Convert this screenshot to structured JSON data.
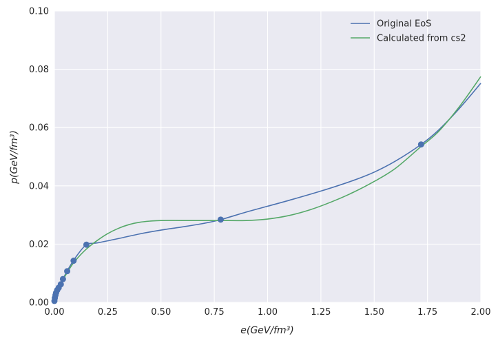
{
  "chart_data": {
    "type": "line",
    "title": "",
    "xlabel": "e(GeV/fm³)",
    "ylabel": "p(GeV/fm³)",
    "xlim": [
      0,
      2.0
    ],
    "ylim": [
      0,
      0.1
    ],
    "xticks": [
      "0.00",
      "0.25",
      "0.50",
      "0.75",
      "1.00",
      "1.25",
      "1.50",
      "1.75",
      "2.00"
    ],
    "yticks": [
      "0.00",
      "0.02",
      "0.04",
      "0.06",
      "0.08",
      "0.10"
    ],
    "grid": true,
    "legend_position": "top-right",
    "series": [
      {
        "name": "Original EoS",
        "color": "#4c72b0",
        "x": [
          0,
          0.01,
          0.03,
          0.06,
          0.1,
          0.15,
          0.2,
          0.3,
          0.4,
          0.5,
          0.6,
          0.7,
          0.78,
          0.9,
          1.0,
          1.1,
          1.25,
          1.4,
          1.5,
          1.6,
          1.72,
          1.8,
          1.9,
          2.0
        ],
        "y": [
          0,
          0.0035,
          0.0065,
          0.0108,
          0.0155,
          0.0198,
          0.0204,
          0.0219,
          0.0235,
          0.0248,
          0.0259,
          0.0271,
          0.0284,
          0.031,
          0.033,
          0.035,
          0.0382,
          0.0418,
          0.0447,
          0.0485,
          0.0542,
          0.059,
          0.0666,
          0.0752
        ]
      },
      {
        "name": "Calculated from cs2",
        "color": "#55a868",
        "x": [
          0,
          0.025,
          0.05,
          0.075,
          0.1,
          0.15,
          0.2,
          0.25,
          0.3,
          0.35,
          0.4,
          0.45,
          0.5,
          0.6,
          0.7,
          0.78,
          0.9,
          1.0,
          1.1,
          1.2,
          1.3,
          1.4,
          1.5,
          1.6,
          1.72,
          1.8,
          1.9,
          2.0
        ],
        "y": [
          0,
          0.0055,
          0.009,
          0.012,
          0.0145,
          0.0183,
          0.0212,
          0.0236,
          0.0254,
          0.0267,
          0.0275,
          0.0279,
          0.0281,
          0.0281,
          0.0281,
          0.0281,
          0.0281,
          0.0286,
          0.0298,
          0.0318,
          0.0345,
          0.0377,
          0.0415,
          0.046,
          0.0535,
          0.0585,
          0.0672,
          0.0775
        ]
      }
    ],
    "markers": {
      "color": "#4c72b0",
      "x": [
        0.0,
        0.002,
        0.005,
        0.008,
        0.013,
        0.02,
        0.03,
        0.04,
        0.06,
        0.09,
        0.15,
        0.78,
        1.72
      ],
      "y": [
        0.0005,
        0.0015,
        0.0025,
        0.0033,
        0.0042,
        0.005,
        0.0062,
        0.008,
        0.0107,
        0.0143,
        0.0198,
        0.0284,
        0.0542
      ]
    }
  }
}
